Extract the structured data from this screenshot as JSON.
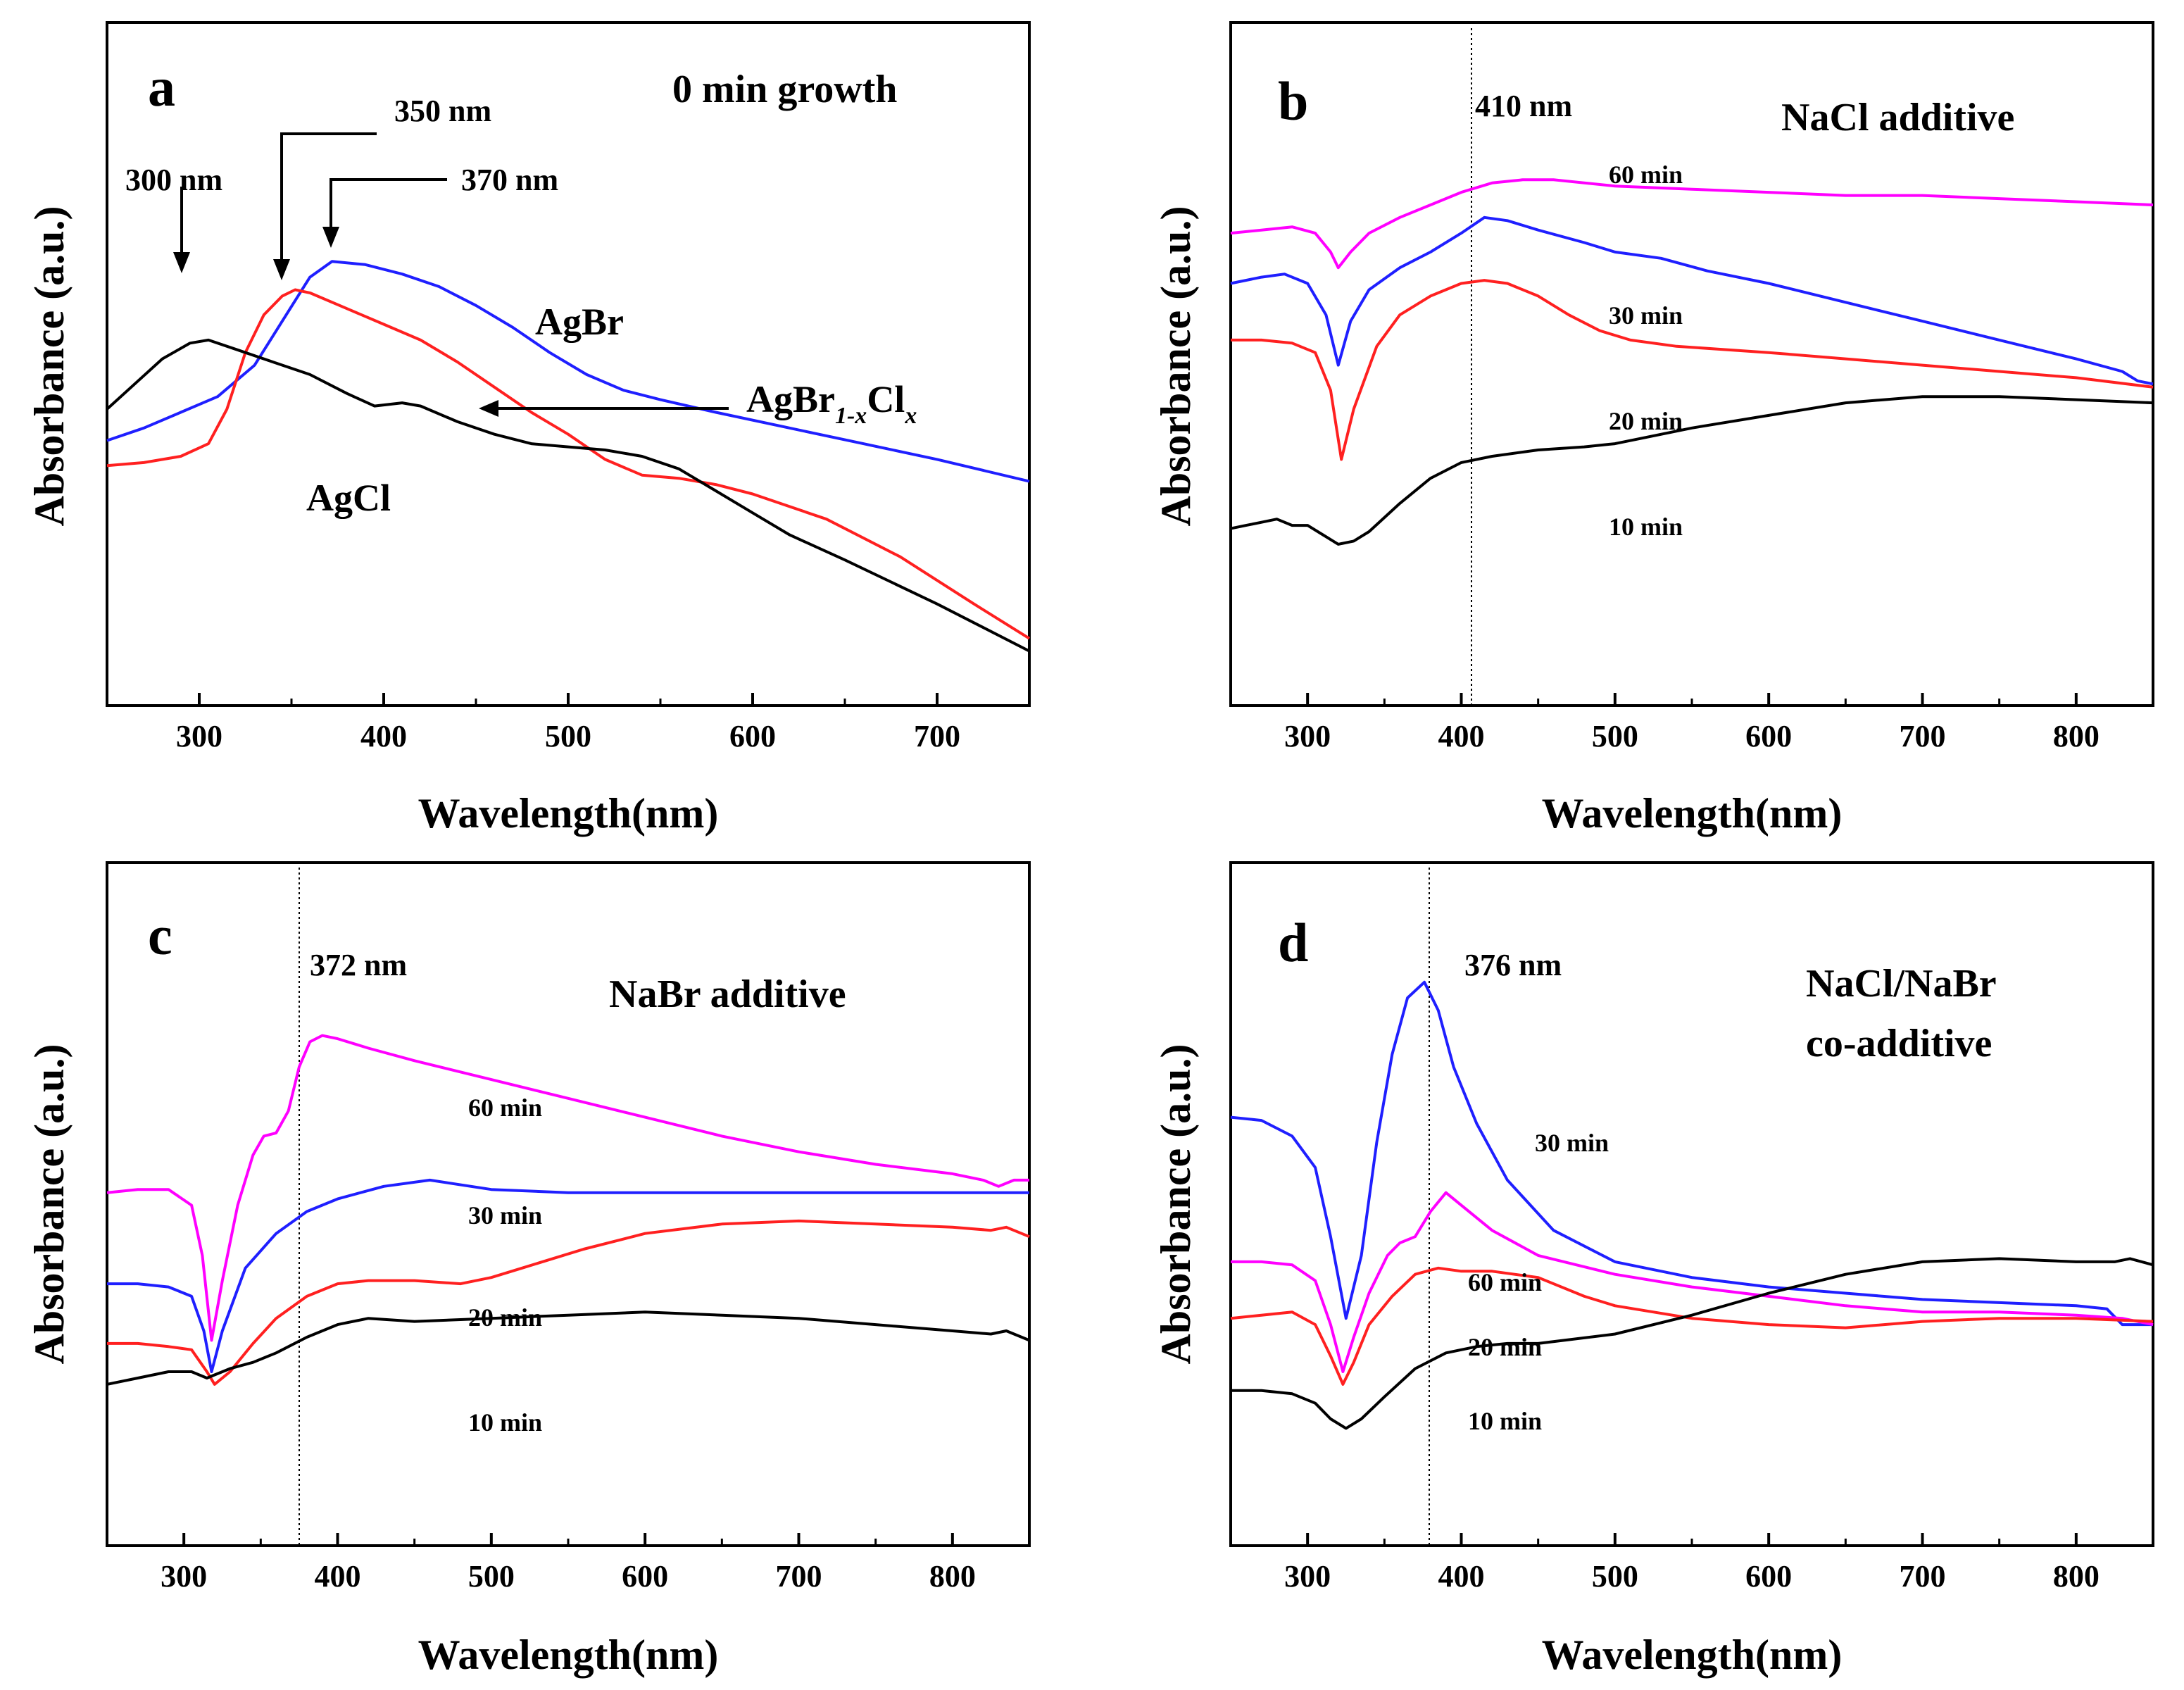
{
  "chart_data": [
    {
      "panel": "a",
      "type": "line",
      "title": "0 min growth",
      "xlabel": "Wavelength(nm)",
      "ylabel": "Absorbance (a.u.)",
      "xlim": [
        250,
        750
      ],
      "ylim": [
        0,
        1
      ],
      "xticks": [
        300,
        400,
        500,
        600,
        700
      ],
      "series": [
        {
          "name": "AgBr",
          "color": "#1f1fff",
          "x": [
            250,
            270,
            290,
            310,
            330,
            345,
            360,
            372,
            390,
            410,
            430,
            450,
            470,
            490,
            510,
            530,
            550,
            580,
            620,
            660,
            700,
            750
          ],
          "y": [
            0.4,
            0.42,
            0.445,
            0.47,
            0.52,
            0.59,
            0.66,
            0.685,
            0.68,
            0.665,
            0.645,
            0.615,
            0.58,
            0.54,
            0.505,
            0.48,
            0.465,
            0.445,
            0.42,
            0.395,
            0.37,
            0.335
          ]
        },
        {
          "name": "AgBr1-xClx",
          "color": "#ff2020",
          "x": [
            250,
            270,
            290,
            305,
            315,
            325,
            335,
            345,
            352,
            360,
            380,
            400,
            420,
            440,
            460,
            480,
            500,
            520,
            540,
            560,
            580,
            600,
            640,
            680,
            720,
            750
          ],
          "y": [
            0.36,
            0.365,
            0.375,
            0.395,
            0.45,
            0.54,
            0.6,
            0.63,
            0.64,
            0.635,
            0.61,
            0.585,
            0.56,
            0.525,
            0.485,
            0.445,
            0.41,
            0.37,
            0.345,
            0.34,
            0.33,
            0.315,
            0.275,
            0.215,
            0.14,
            0.085
          ]
        },
        {
          "name": "AgCl",
          "color": "#000000",
          "x": [
            250,
            265,
            280,
            295,
            305,
            320,
            340,
            360,
            380,
            395,
            410,
            420,
            440,
            460,
            480,
            500,
            520,
            540,
            560,
            580,
            600,
            620,
            650,
            700,
            750
          ],
          "y": [
            0.45,
            0.49,
            0.53,
            0.555,
            0.56,
            0.545,
            0.525,
            0.505,
            0.475,
            0.455,
            0.46,
            0.455,
            0.43,
            0.41,
            0.395,
            0.39,
            0.385,
            0.375,
            0.355,
            0.32,
            0.285,
            0.25,
            0.21,
            0.14,
            0.065
          ]
        }
      ],
      "annotations": [
        "300 nm",
        "350 nm",
        "370 nm",
        "AgBr",
        "AgCl"
      ]
    },
    {
      "panel": "b",
      "type": "line",
      "title": "NaCl additive",
      "xlabel": "Wavelength(nm)",
      "ylabel": "Absorbance (a.u.)",
      "xlim": [
        250,
        850
      ],
      "ylim": [
        0,
        1
      ],
      "xticks": [
        300,
        400,
        500,
        600,
        700,
        800
      ],
      "marker_nm": 410,
      "marker_label": "410 nm",
      "series": [
        {
          "name": "60 min",
          "color": "#ff00ff",
          "x": [
            250,
            270,
            290,
            305,
            315,
            320,
            328,
            340,
            360,
            380,
            400,
            420,
            440,
            460,
            500,
            550,
            600,
            650,
            700,
            750,
            800,
            850
          ],
          "y": [
            0.73,
            0.735,
            0.74,
            0.73,
            0.7,
            0.675,
            0.7,
            0.73,
            0.755,
            0.775,
            0.795,
            0.81,
            0.815,
            0.815,
            0.805,
            0.8,
            0.795,
            0.79,
            0.79,
            0.785,
            0.78,
            0.775
          ]
        },
        {
          "name": "30 min",
          "color": "#1f1fff",
          "x": [
            250,
            270,
            285,
            300,
            312,
            320,
            328,
            340,
            360,
            380,
            400,
            415,
            430,
            450,
            480,
            500,
            530,
            560,
            600,
            650,
            700,
            750,
            800,
            830,
            840,
            850
          ],
          "y": [
            0.65,
            0.66,
            0.665,
            0.65,
            0.6,
            0.52,
            0.59,
            0.64,
            0.675,
            0.7,
            0.73,
            0.755,
            0.75,
            0.735,
            0.715,
            0.7,
            0.69,
            0.67,
            0.65,
            0.62,
            0.59,
            0.56,
            0.53,
            0.51,
            0.495,
            0.49
          ]
        },
        {
          "name": "20 min",
          "color": "#ff2020",
          "x": [
            250,
            270,
            290,
            305,
            315,
            322,
            330,
            345,
            360,
            380,
            400,
            415,
            430,
            450,
            470,
            490,
            510,
            540,
            570,
            600,
            650,
            700,
            750,
            800,
            850
          ],
          "y": [
            0.56,
            0.56,
            0.555,
            0.54,
            0.48,
            0.37,
            0.45,
            0.55,
            0.6,
            0.63,
            0.65,
            0.655,
            0.65,
            0.63,
            0.6,
            0.575,
            0.56,
            0.55,
            0.545,
            0.54,
            0.53,
            0.52,
            0.51,
            0.5,
            0.485
          ]
        },
        {
          "name": "10 min",
          "color": "#000000",
          "x": [
            250,
            260,
            270,
            280,
            290,
            300,
            310,
            320,
            330,
            340,
            360,
            380,
            400,
            420,
            450,
            480,
            500,
            520,
            550,
            600,
            650,
            700,
            750,
            800,
            850
          ],
          "y": [
            0.26,
            0.265,
            0.27,
            0.275,
            0.265,
            0.265,
            0.25,
            0.235,
            0.24,
            0.255,
            0.3,
            0.34,
            0.365,
            0.375,
            0.385,
            0.39,
            0.395,
            0.405,
            0.42,
            0.44,
            0.46,
            0.47,
            0.47,
            0.465,
            0.46
          ]
        }
      ]
    },
    {
      "panel": "c",
      "type": "line",
      "title": "NaBr additive",
      "xlabel": "Wavelength(nm)",
      "ylabel": "Absorbance (a.u.)",
      "xlim": [
        250,
        850
      ],
      "ylim": [
        0,
        1
      ],
      "xticks": [
        300,
        400,
        500,
        600,
        700,
        800
      ],
      "marker_nm": 372,
      "marker_label": "372 nm",
      "series": [
        {
          "name": "60 min",
          "color": "#ff00ff",
          "x": [
            250,
            270,
            290,
            305,
            312,
            318,
            325,
            335,
            345,
            352,
            360,
            368,
            375,
            382,
            390,
            400,
            420,
            450,
            500,
            550,
            600,
            650,
            700,
            750,
            800,
            820,
            830,
            840,
            850
          ],
          "y": [
            0.54,
            0.545,
            0.545,
            0.52,
            0.44,
            0.305,
            0.4,
            0.52,
            0.6,
            0.63,
            0.635,
            0.67,
            0.74,
            0.78,
            0.79,
            0.785,
            0.77,
            0.75,
            0.72,
            0.69,
            0.66,
            0.63,
            0.605,
            0.585,
            0.57,
            0.56,
            0.55,
            0.56,
            0.56
          ]
        },
        {
          "name": "30 min",
          "color": "#1f1fff",
          "x": [
            250,
            270,
            290,
            305,
            313,
            318,
            325,
            340,
            360,
            380,
            400,
            430,
            460,
            500,
            550,
            600,
            650,
            700,
            750,
            800,
            850
          ],
          "y": [
            0.395,
            0.395,
            0.39,
            0.375,
            0.32,
            0.255,
            0.32,
            0.42,
            0.475,
            0.51,
            0.53,
            0.55,
            0.56,
            0.545,
            0.54,
            0.54,
            0.54,
            0.54,
            0.54,
            0.54,
            0.54
          ]
        },
        {
          "name": "20 min",
          "color": "#ff2020",
          "x": [
            250,
            270,
            290,
            305,
            315,
            320,
            330,
            345,
            360,
            380,
            400,
            420,
            450,
            480,
            500,
            520,
            560,
            600,
            650,
            700,
            750,
            800,
            825,
            835,
            850
          ],
          "y": [
            0.3,
            0.3,
            0.295,
            0.29,
            0.255,
            0.235,
            0.255,
            0.3,
            0.34,
            0.375,
            0.395,
            0.4,
            0.4,
            0.395,
            0.405,
            0.42,
            0.45,
            0.475,
            0.49,
            0.495,
            0.49,
            0.485,
            0.48,
            0.485,
            0.47
          ]
        },
        {
          "name": "10 min",
          "color": "#000000",
          "x": [
            250,
            270,
            290,
            305,
            315,
            320,
            330,
            345,
            360,
            380,
            400,
            420,
            450,
            500,
            550,
            600,
            650,
            700,
            750,
            800,
            825,
            835,
            850
          ],
          "y": [
            0.235,
            0.245,
            0.255,
            0.255,
            0.245,
            0.25,
            0.26,
            0.27,
            0.285,
            0.31,
            0.33,
            0.34,
            0.335,
            0.34,
            0.345,
            0.35,
            0.345,
            0.34,
            0.33,
            0.32,
            0.315,
            0.32,
            0.305
          ]
        }
      ]
    },
    {
      "panel": "d",
      "type": "line",
      "title": "NaCl/NaBr co-additive",
      "title_lines": [
        "NaCl/NaBr",
        "co-additive"
      ],
      "xlabel": "Wavelength(nm)",
      "ylabel": "Absorbance (a.u.)",
      "xlim": [
        250,
        850
      ],
      "ylim": [
        0,
        1
      ],
      "xticks": [
        300,
        400,
        500,
        600,
        700,
        800
      ],
      "marker_nm": 376,
      "marker_label": "376 nm",
      "series": [
        {
          "name": "30 min",
          "color": "#1f1fff",
          "x": [
            250,
            270,
            290,
            305,
            315,
            325,
            335,
            345,
            355,
            365,
            376,
            385,
            395,
            410,
            430,
            460,
            500,
            550,
            600,
            650,
            700,
            750,
            800,
            820,
            830,
            850
          ],
          "y": [
            0.66,
            0.655,
            0.63,
            0.58,
            0.47,
            0.34,
            0.44,
            0.62,
            0.76,
            0.85,
            0.875,
            0.83,
            0.74,
            0.65,
            0.56,
            0.48,
            0.43,
            0.405,
            0.39,
            0.38,
            0.37,
            0.365,
            0.36,
            0.355,
            0.33,
            0.33
          ]
        },
        {
          "name": "60 min",
          "color": "#ff00ff",
          "x": [
            250,
            270,
            290,
            305,
            315,
            323,
            330,
            340,
            352,
            360,
            370,
            380,
            390,
            400,
            420,
            450,
            500,
            550,
            600,
            650,
            700,
            750,
            800,
            830,
            850
          ],
          "y": [
            0.43,
            0.43,
            0.425,
            0.4,
            0.33,
            0.255,
            0.31,
            0.38,
            0.44,
            0.46,
            0.47,
            0.51,
            0.54,
            0.52,
            0.48,
            0.44,
            0.41,
            0.39,
            0.375,
            0.36,
            0.35,
            0.35,
            0.345,
            0.34,
            0.33
          ]
        },
        {
          "name": "20 min",
          "color": "#ff2020",
          "x": [
            250,
            270,
            290,
            305,
            315,
            323,
            330,
            340,
            355,
            370,
            385,
            400,
            420,
            450,
            480,
            500,
            550,
            600,
            650,
            700,
            750,
            800,
            850
          ],
          "y": [
            0.34,
            0.345,
            0.35,
            0.33,
            0.28,
            0.235,
            0.27,
            0.33,
            0.375,
            0.41,
            0.42,
            0.415,
            0.415,
            0.405,
            0.375,
            0.36,
            0.34,
            0.33,
            0.325,
            0.335,
            0.34,
            0.34,
            0.335
          ]
        },
        {
          "name": "10 min",
          "color": "#000000",
          "x": [
            250,
            270,
            290,
            305,
            315,
            325,
            335,
            350,
            370,
            390,
            410,
            430,
            450,
            500,
            550,
            600,
            650,
            700,
            750,
            800,
            825,
            835,
            850
          ],
          "y": [
            0.225,
            0.225,
            0.22,
            0.205,
            0.18,
            0.165,
            0.18,
            0.215,
            0.26,
            0.285,
            0.295,
            0.3,
            0.3,
            0.315,
            0.345,
            0.38,
            0.41,
            0.43,
            0.435,
            0.43,
            0.43,
            0.435,
            0.425
          ]
        }
      ]
    }
  ],
  "figure": {
    "panels": {
      "a": {
        "letter": "a",
        "title": "0 min growth",
        "ann_300": "300 nm",
        "ann_350": "350 nm",
        "ann_370": "370 nm",
        "lab_agbr": "AgBr",
        "lab_agcl": "AgCl",
        "lab_mixed_base": "AgBr",
        "lab_mixed_sub1": "1-x",
        "lab_mixed_cl": "Cl",
        "lab_mixed_sub2": "x"
      },
      "b": {
        "letter": "b",
        "title": "NaCl additive",
        "marker": "410 nm",
        "s60": "60 min",
        "s30": "30 min",
        "s20": "20 min",
        "s10": "10 min"
      },
      "c": {
        "letter": "c",
        "title": "NaBr additive",
        "marker": "372 nm",
        "s60": "60 min",
        "s30": "30 min",
        "s20": "20 min",
        "s10": "10 min"
      },
      "d": {
        "letter": "d",
        "title_line1": "NaCl/NaBr",
        "title_line2": "co-additive",
        "marker": "376 nm",
        "s30": "30 min",
        "s60": "60 min",
        "s20": "20 min",
        "s10": "10 min"
      }
    },
    "xlabel": "Wavelength(nm)",
    "ylabel": "Absorbance (a.u.)"
  }
}
